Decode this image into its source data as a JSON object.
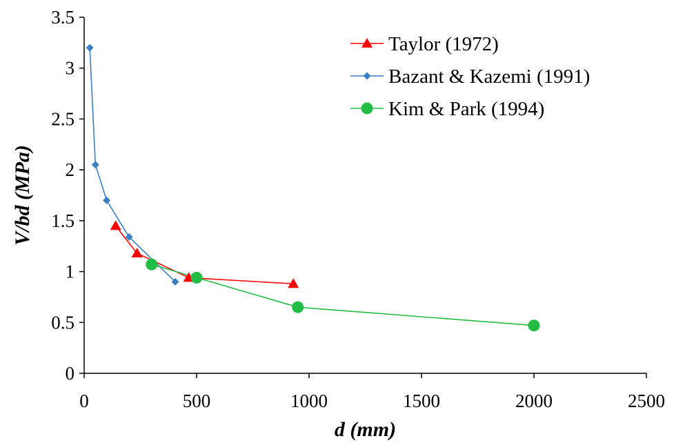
{
  "chart_data": {
    "type": "line",
    "title": "",
    "xlabel": "d (mm)",
    "ylabel": "V/bd (MPa)",
    "xlim": [
      0,
      2500
    ],
    "ylim": [
      0,
      3.5
    ],
    "xticks": [
      0,
      500,
      1000,
      1500,
      2000,
      2500
    ],
    "yticks": [
      0,
      0.5,
      1,
      1.5,
      2,
      2.5,
      3,
      3.5
    ],
    "xtick_labels": [
      "0",
      "500",
      "1000",
      "1500",
      "2000",
      "2500"
    ],
    "ytick_labels": [
      "0",
      "0.5",
      "1",
      "1.5",
      "2",
      "2.5",
      "3",
      "3.5"
    ],
    "grid": false,
    "legend_position": "top-right",
    "series": [
      {
        "name": "Taylor (1972)",
        "color": "#ff0000",
        "marker": "triangle",
        "x": [
          140,
          235,
          465,
          930
        ],
        "y": [
          1.45,
          1.18,
          0.94,
          0.88
        ]
      },
      {
        "name": "Bazant & Kazemi (1991)",
        "color": "#3a7fc4",
        "marker": "diamond",
        "x": [
          25,
          50,
          100,
          200,
          405
        ],
        "y": [
          3.2,
          2.05,
          1.7,
          1.34,
          0.9
        ]
      },
      {
        "name": "Kim & Park (1994)",
        "color": "#22bb44",
        "marker": "circle",
        "x": [
          300,
          500,
          950,
          2000
        ],
        "y": [
          1.07,
          0.94,
          0.65,
          0.47
        ]
      }
    ]
  }
}
